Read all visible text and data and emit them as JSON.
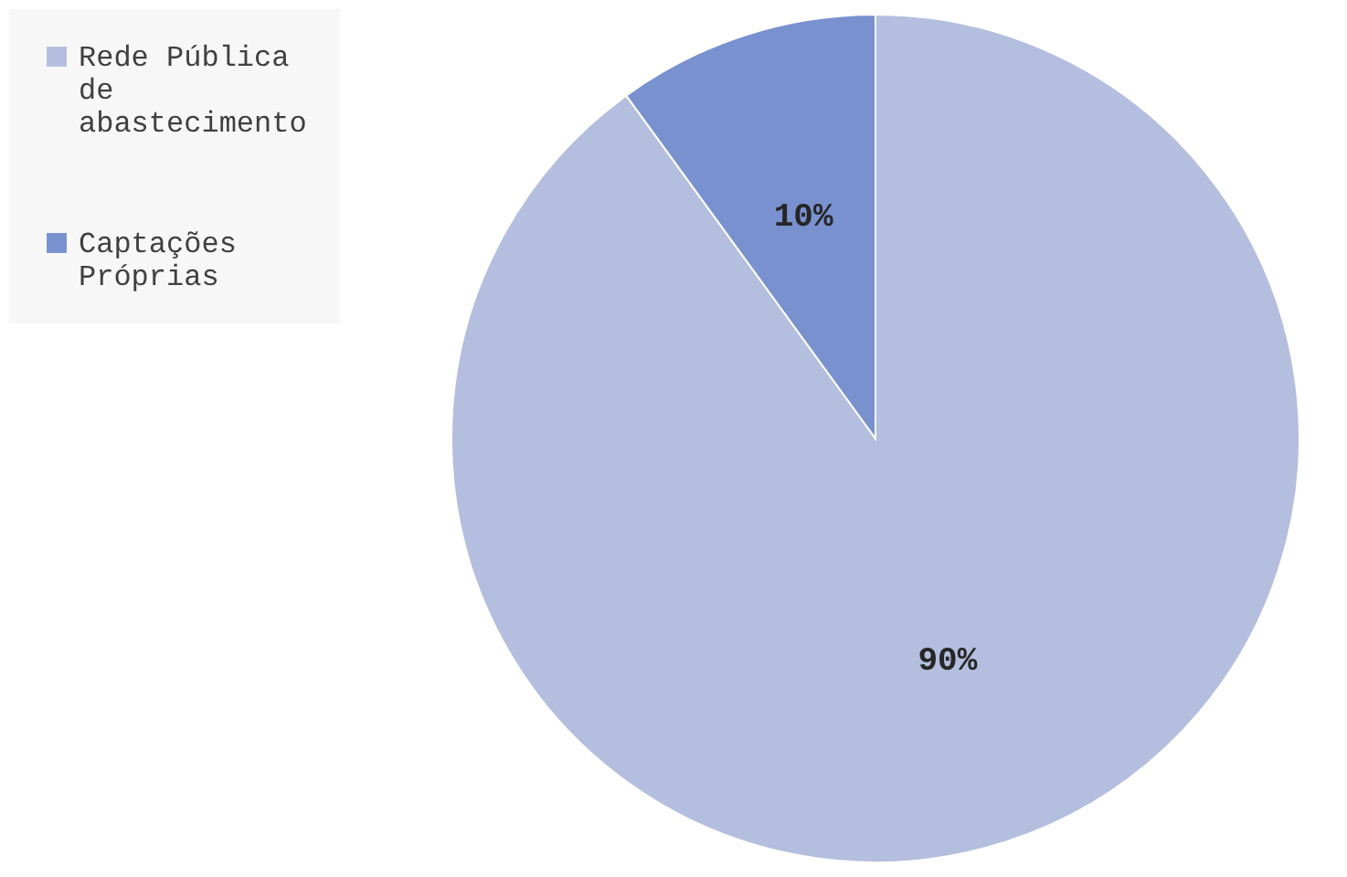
{
  "chart_data": {
    "type": "pie",
    "categories": [
      "Rede Pública de abastecimento",
      "Captações Próprias"
    ],
    "values": [
      90,
      10
    ],
    "colors": [
      "#b4bede",
      "#7991cf"
    ],
    "value_labels": [
      "90%",
      "10%"
    ],
    "legend": "left"
  }
}
